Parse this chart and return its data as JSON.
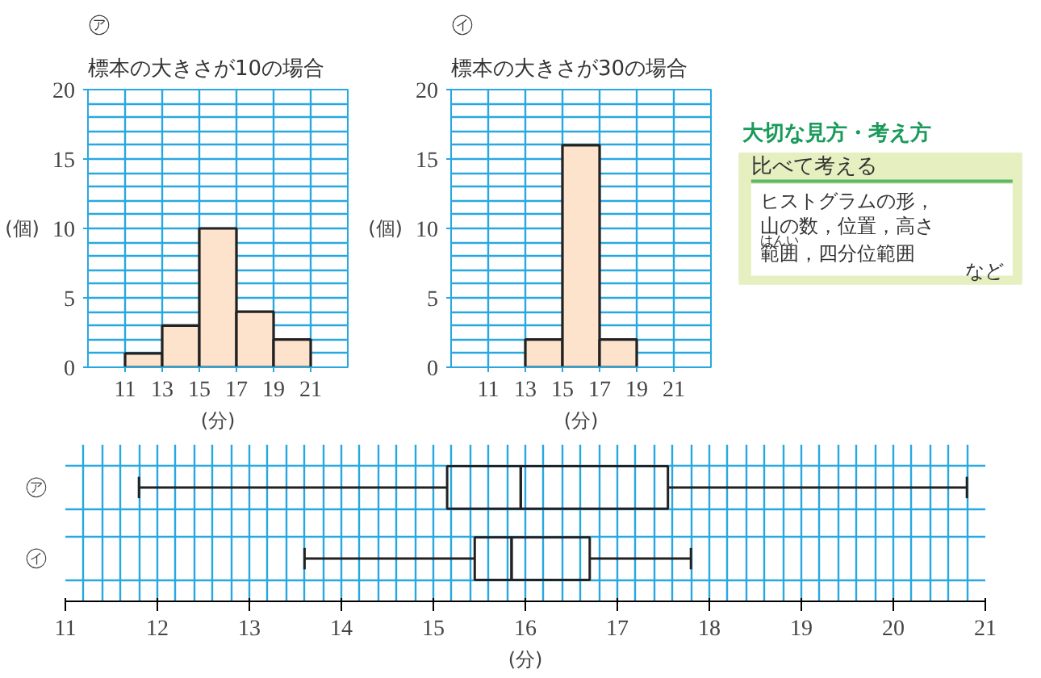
{
  "chart_data": [
    {
      "type": "histogram",
      "title": "㋐",
      "subtitle": "標本の大きさが10の場合",
      "xlabel": "(分)",
      "ylabel": "(個)",
      "bins": [
        11,
        13,
        15,
        17,
        19,
        21
      ],
      "values": [
        1,
        3,
        10,
        4,
        2
      ],
      "color": "#fde3cc",
      "xlim": [
        9,
        23
      ],
      "ylim": [
        0,
        20
      ],
      "xticks": [
        11,
        13,
        15,
        17,
        19,
        21
      ],
      "yticks": [
        0,
        5,
        10,
        15,
        20
      ],
      "grid": true
    },
    {
      "type": "histogram",
      "title": "㋑",
      "subtitle": "標本の大きさが30の場合",
      "xlabel": "(分)",
      "ylabel": "(個)",
      "bins": [
        11,
        13,
        15,
        17,
        19,
        21
      ],
      "values": [
        0,
        2,
        16,
        2,
        0
      ],
      "color": "#fde3cc",
      "xlim": [
        9,
        23
      ],
      "ylim": [
        0,
        20
      ],
      "xticks": [
        11,
        13,
        15,
        17,
        19,
        21
      ],
      "yticks": [
        0,
        5,
        10,
        15,
        20
      ],
      "grid": true
    },
    {
      "type": "other",
      "title": "大切な見方・考え方",
      "subtitle": "比べて考える",
      "annotations": [
        "ヒストグラムの形，",
        "山の数，位置，高さ",
        "はんい",
        "範囲，四分位範囲",
        "など"
      ]
    },
    {
      "type": "box",
      "orientation": "horizontal",
      "categories": [
        "㋐",
        "㋑"
      ],
      "xlabel": "(分)",
      "xlim": [
        11,
        21
      ],
      "grid": true,
      "boxes": [
        {
          "low": 11.8,
          "q1": 15.15,
          "median": 15.95,
          "q3": 17.55,
          "high": 20.8
        },
        {
          "low": 13.6,
          "q1": 15.45,
          "median": 15.85,
          "q3": 16.7,
          "high": 17.8
        }
      ],
      "xticks": [
        11,
        12,
        13,
        14,
        15,
        16,
        17,
        18,
        19,
        20,
        21
      ]
    }
  ]
}
